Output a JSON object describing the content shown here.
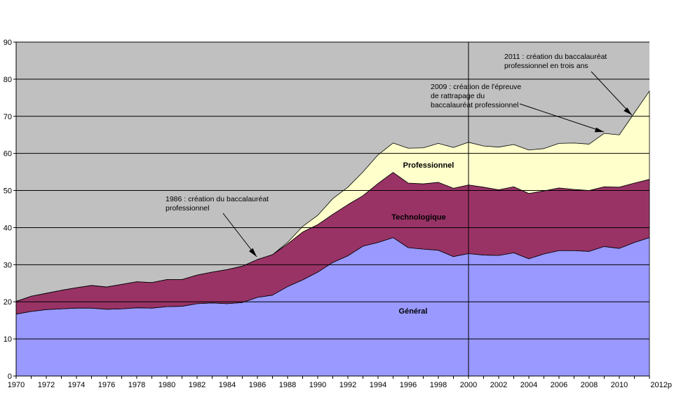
{
  "chart_data": {
    "type": "area",
    "stacked": true,
    "title": "",
    "xlabel": "",
    "ylabel": "",
    "ylim": [
      0,
      90
    ],
    "y_ticks": [
      0,
      10,
      20,
      30,
      40,
      50,
      60,
      70,
      80,
      90
    ],
    "grid": true,
    "x_tick_labels": [
      "1970",
      "1972",
      "1974",
      "1976",
      "1978",
      "1980",
      "1982",
      "1984",
      "1986",
      "1988",
      "1990",
      "1992",
      "1994",
      "1996",
      "1998",
      "2000",
      "2002",
      "2004",
      "2006",
      "2008",
      "2010",
      "2012p"
    ],
    "x": [
      1970,
      1971,
      1972,
      1973,
      1974,
      1975,
      1976,
      1977,
      1978,
      1979,
      1980,
      1981,
      1982,
      1983,
      1984,
      1985,
      1986,
      1987,
      1988,
      1989,
      1990,
      1991,
      1992,
      1993,
      1994,
      1995,
      1996,
      1997,
      1998,
      1999,
      2000,
      2001,
      2002,
      2003,
      2004,
      2005,
      2006,
      2007,
      2008,
      2009,
      2010,
      2011,
      2012
    ],
    "series": [
      {
        "name": "Général",
        "color": "#9999ff",
        "values": [
          16.7,
          17.4,
          17.9,
          18.1,
          18.3,
          18.3,
          18.0,
          18.1,
          18.4,
          18.3,
          18.7,
          18.8,
          19.5,
          19.7,
          19.5,
          19.8,
          21.2,
          21.8,
          24.1,
          25.9,
          28.0,
          30.6,
          32.4,
          35.0,
          36.0,
          37.3,
          34.6,
          34.2,
          33.9,
          32.2,
          33.0,
          32.6,
          32.5,
          33.2,
          31.6,
          32.9,
          33.8,
          33.8,
          33.6,
          34.9,
          34.4,
          36.0,
          37.3
        ]
      },
      {
        "name": "Technologique",
        "color": "#993366",
        "values": [
          3.4,
          4.1,
          4.4,
          5.0,
          5.5,
          6.1,
          6.0,
          6.6,
          7.0,
          6.9,
          7.3,
          7.2,
          7.7,
          8.3,
          9.2,
          9.8,
          10.2,
          10.9,
          11.5,
          12.9,
          12.8,
          13.0,
          13.8,
          13.6,
          15.9,
          17.6,
          17.4,
          17.6,
          18.3,
          18.4,
          18.5,
          18.3,
          17.7,
          17.8,
          17.6,
          17.0,
          16.9,
          16.5,
          16.4,
          16.1,
          16.5,
          16.0,
          15.7
        ]
      },
      {
        "name": "Professionnel",
        "color": "#ffffcc",
        "values": [
          0,
          0,
          0,
          0,
          0,
          0,
          0,
          0,
          0,
          0,
          0,
          0,
          0,
          0,
          0,
          0,
          0,
          0,
          0.4,
          1.5,
          2.5,
          4.2,
          4.7,
          6.4,
          7.7,
          7.9,
          9.4,
          9.7,
          10.5,
          11.0,
          11.5,
          11.1,
          11.5,
          11.4,
          11.7,
          11.4,
          12.0,
          12.5,
          12.5,
          14.4,
          14.1,
          18.9,
          23.8
        ]
      },
      {
        "name": "",
        "color": "#c0c0c0",
        "values": [
          69.9,
          68.5,
          67.7,
          66.9,
          66.2,
          65.6,
          66.0,
          65.3,
          64.6,
          64.8,
          64.0,
          64.0,
          62.8,
          62.0,
          61.3,
          60.4,
          58.6,
          57.3,
          54.0,
          49.7,
          46.7,
          42.2,
          39.1,
          35.0,
          30.4,
          27.2,
          28.6,
          28.5,
          27.3,
          28.4,
          27.0,
          28.0,
          28.3,
          27.6,
          29.1,
          28.7,
          27.3,
          27.2,
          27.5,
          24.6,
          25.0,
          19.1,
          13.2
        ]
      }
    ],
    "labels": {
      "general": "Général",
      "technologique": "Technologique",
      "professionnel": "Professionnel"
    },
    "vertical_line_x": 2000,
    "annotations": [
      {
        "lines": [
          "1986 : création du baccalauréat",
          "professionnel"
        ],
        "x": 1986,
        "y": 31.2
      },
      {
        "lines": [
          "2009 : création de l'épreuve",
          "de rattrapage du",
          "baccalauréat professionnel"
        ],
        "x": 2009,
        "y": 65.3
      },
      {
        "lines": [
          "2011 : création du baccalauréat",
          "professionnel en trois ans"
        ],
        "x": 2011,
        "y": 70.0
      }
    ]
  }
}
